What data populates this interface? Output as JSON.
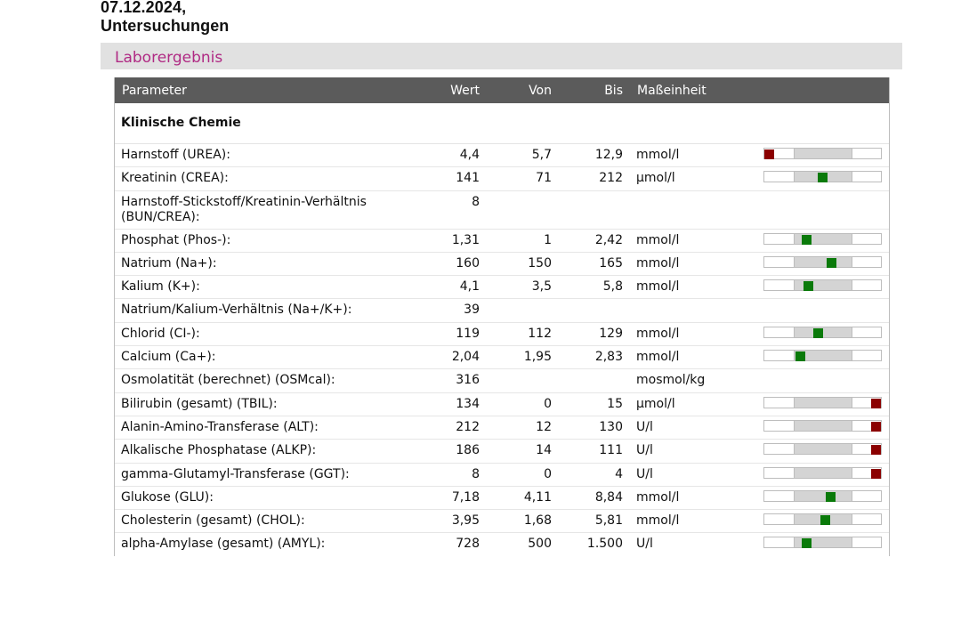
{
  "header": {
    "line1": "07.12.2024,",
    "line2": "Untersuchungen"
  },
  "section": {
    "title": "Laborergebnis"
  },
  "table": {
    "columns": {
      "parameter": "Parameter",
      "wert": "Wert",
      "von": "Von",
      "bis": "Bis",
      "unit": "Maßeinheit"
    },
    "group": "Klinische Chemie",
    "colors": {
      "normal": "#0a7a0a",
      "abnormal": "#8b0000"
    },
    "rows": [
      {
        "param": "Harnstoff (UREA):",
        "wert": "4,4",
        "von": "5,7",
        "bis": "12,9",
        "unit": "mmol/l",
        "gauge": true,
        "level": 0.04,
        "status": "abnormal"
      },
      {
        "param": "Kreatinin (CREA):",
        "wert": "141",
        "von": "71",
        "bis": "212",
        "unit": "µmol/l",
        "gauge": true,
        "level": 0.5,
        "status": "normal"
      },
      {
        "param": "Harnstoff-Stickstoff/Kreatinin-Verhältnis (BUN/CREA):",
        "wert": "8",
        "von": "",
        "bis": "",
        "unit": "",
        "gauge": false,
        "level": null,
        "status": "normal",
        "tall": true
      },
      {
        "param": "Phosphat (Phos-):",
        "wert": "1,31",
        "von": "1",
        "bis": "2,42",
        "unit": "mmol/l",
        "gauge": true,
        "level": 0.36,
        "status": "normal"
      },
      {
        "param": "Natrium (Na+):",
        "wert": "160",
        "von": "150",
        "bis": "165",
        "unit": "mmol/l",
        "gauge": true,
        "level": 0.58,
        "status": "normal"
      },
      {
        "param": "Kalium (K+):",
        "wert": "4,1",
        "von": "3,5",
        "bis": "5,8",
        "unit": "mmol/l",
        "gauge": true,
        "level": 0.38,
        "status": "normal"
      },
      {
        "param": "Natrium/Kalium-Verhältnis (Na+/K+):",
        "wert": "39",
        "von": "",
        "bis": "",
        "unit": "",
        "gauge": false,
        "level": null,
        "status": "normal"
      },
      {
        "param": "Chlorid (CI-):",
        "wert": "119",
        "von": "112",
        "bis": "129",
        "unit": "mmol/l",
        "gauge": true,
        "level": 0.46,
        "status": "normal"
      },
      {
        "param": "Calcium (Ca+):",
        "wert": "2,04",
        "von": "1,95",
        "bis": "2,83",
        "unit": "mmol/l",
        "gauge": true,
        "level": 0.31,
        "status": "normal"
      },
      {
        "param": "Osmolatität (berechnet) (OSMcal):",
        "wert": "316",
        "von": "",
        "bis": "",
        "unit": "mosmol/kg",
        "gauge": false,
        "level": null,
        "status": "normal"
      },
      {
        "param": "Bilirubin (gesamt) (TBIL):",
        "wert": "134",
        "von": "0",
        "bis": "15",
        "unit": "µmol/l",
        "gauge": true,
        "level": 0.96,
        "status": "abnormal"
      },
      {
        "param": "Alanin-Amino-Transferase (ALT):",
        "wert": "212",
        "von": "12",
        "bis": "130",
        "unit": "U/l",
        "gauge": true,
        "level": 0.96,
        "status": "abnormal"
      },
      {
        "param": "Alkalische Phosphatase (ALKP):",
        "wert": "186",
        "von": "14",
        "bis": "111",
        "unit": "U/l",
        "gauge": true,
        "level": 0.96,
        "status": "abnormal"
      },
      {
        "param": "gamma-Glutamyl-Transferase (GGT):",
        "wert": "8",
        "von": "0",
        "bis": "4",
        "unit": "U/l",
        "gauge": true,
        "level": 0.96,
        "status": "abnormal"
      },
      {
        "param": "Glukose (GLU):",
        "wert": "7,18",
        "von": "4,11",
        "bis": "8,84",
        "unit": "mmol/l",
        "gauge": true,
        "level": 0.57,
        "status": "normal"
      },
      {
        "param": "Cholesterin (gesamt) (CHOL):",
        "wert": "3,95",
        "von": "1,68",
        "bis": "5,81",
        "unit": "mmol/l",
        "gauge": true,
        "level": 0.52,
        "status": "normal"
      },
      {
        "param": "alpha-Amylase (gesamt) (AMYL):",
        "wert": "728",
        "von": "500",
        "bis": "1.500",
        "unit": "U/l",
        "gauge": true,
        "level": 0.36,
        "status": "normal"
      }
    ]
  }
}
